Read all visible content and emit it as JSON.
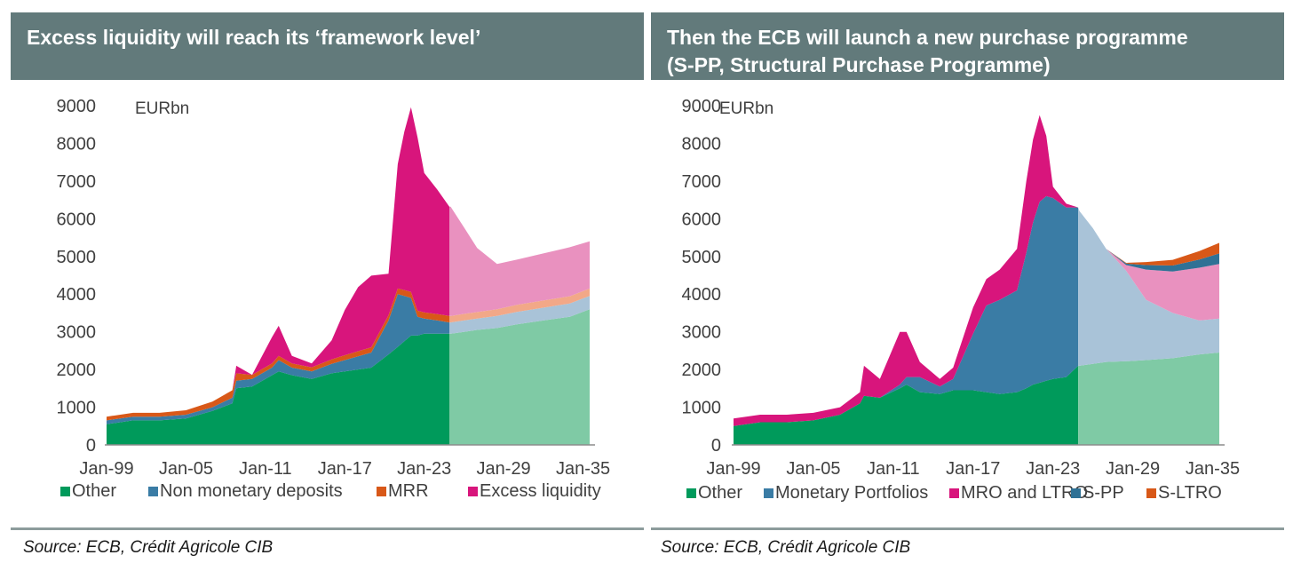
{
  "chart_data": [
    {
      "type": "area",
      "title": "Excess liquidity will reach its ‘framework level’",
      "unit_label": "EURbn",
      "ylim": [
        0,
        9000
      ],
      "yticks": [
        0,
        1000,
        2000,
        3000,
        4000,
        5000,
        6000,
        7000,
        8000,
        9000
      ],
      "xticks": [
        "Jan-99",
        "Jan-05",
        "Jan-11",
        "Jan-17",
        "Jan-23",
        "Jan-29",
        "Jan-35"
      ],
      "stacked": true,
      "x": [
        1999,
        2001,
        2003,
        2005,
        2007,
        2008.5,
        2008.8,
        2010,
        2011.5,
        2012,
        2013,
        2014.5,
        2016,
        2017,
        2018,
        2019,
        2020.3,
        2021,
        2021.5,
        2022,
        2022.5,
        2023,
        2024,
        2024.9,
        2025,
        2026,
        2027,
        2028.5,
        2030,
        2032,
        2034,
        2035.5
      ],
      "forecast_start": 2024.9,
      "series": [
        {
          "name": "Other",
          "color": "#009a5b",
          "forecast_color": "#7fcaa5",
          "values": [
            550,
            650,
            650,
            700,
            900,
            1100,
            1500,
            1550,
            1850,
            1950,
            1850,
            1750,
            1900,
            1950,
            2000,
            2050,
            2400,
            2600,
            2750,
            2900,
            2900,
            2950,
            2950,
            2950,
            2950,
            3000,
            3050,
            3100,
            3200,
            3300,
            3400,
            3600
          ]
        },
        {
          "name": "Non monetary deposits",
          "color": "#3a7ca5",
          "forecast_color": "#a9c3d8",
          "values": [
            100,
            100,
            100,
            100,
            100,
            150,
            200,
            200,
            200,
            300,
            200,
            200,
            250,
            300,
            350,
            400,
            900,
            1400,
            1200,
            1000,
            500,
            400,
            350,
            300,
            300,
            300,
            300,
            320,
            330,
            340,
            350,
            350
          ]
        },
        {
          "name": "MRR",
          "color": "#d85818",
          "forecast_color": "#f2a888",
          "values": [
            100,
            100,
            100,
            120,
            150,
            200,
            200,
            110,
            110,
            110,
            110,
            110,
            120,
            130,
            135,
            140,
            140,
            150,
            160,
            160,
            160,
            165,
            170,
            170,
            170,
            175,
            175,
            180,
            185,
            190,
            195,
            200
          ]
        },
        {
          "name": "Excess liquidity",
          "color": "#d8157c",
          "forecast_color": "#e991bf",
          "values": [
            0,
            0,
            0,
            0,
            0,
            0,
            200,
            0,
            700,
            800,
            200,
            100,
            500,
            1200,
            1700,
            1900,
            1100,
            3300,
            4200,
            4900,
            4600,
            3700,
            3300,
            2900,
            2900,
            2300,
            1700,
            1200,
            1200,
            1250,
            1300,
            1250
          ]
        }
      ]
    },
    {
      "type": "area",
      "title": "Then the ECB will launch a new purchase programme (S-PP, Structural Purchase Programme)",
      "title_lines": [
        "Then the ECB will launch a new purchase programme",
        "(S-PP, Structural Purchase Programme)"
      ],
      "unit_label": "EURbn",
      "ylim": [
        0,
        9000
      ],
      "yticks": [
        0,
        1000,
        2000,
        3000,
        4000,
        5000,
        6000,
        7000,
        8000,
        9000
      ],
      "xticks": [
        "Jan-99",
        "Jan-05",
        "Jan-11",
        "Jan-17",
        "Jan-23",
        "Jan-29",
        "Jan-35"
      ],
      "stacked": true,
      "x": [
        1999,
        2001,
        2003,
        2005,
        2007,
        2008.5,
        2008.8,
        2010,
        2011.5,
        2012,
        2013,
        2014.5,
        2015.5,
        2017,
        2018,
        2019,
        2020.3,
        2021,
        2021.5,
        2022,
        2022.5,
        2023,
        2024,
        2024.9,
        2025,
        2026,
        2027,
        2028.5,
        2030,
        2032,
        2034,
        2035.5
      ],
      "forecast_start": 2024.9,
      "series": [
        {
          "name": "Other",
          "color": "#009a5b",
          "forecast_color": "#7fcaa5",
          "values": [
            500,
            600,
            600,
            650,
            800,
            1100,
            1300,
            1250,
            1500,
            1600,
            1400,
            1350,
            1450,
            1450,
            1400,
            1350,
            1400,
            1500,
            1600,
            1650,
            1700,
            1750,
            1800,
            2100,
            2100,
            2150,
            2200,
            2220,
            2250,
            2300,
            2400,
            2450
          ]
        },
        {
          "name": "Monetary Portfolios",
          "color": "#3a7ca5",
          "forecast_color": "#a9c3d8",
          "values": [
            0,
            0,
            0,
            0,
            0,
            0,
            0,
            0,
            100,
            200,
            400,
            200,
            300,
            1500,
            2300,
            2500,
            2700,
            3600,
            4300,
            4800,
            4900,
            4800,
            4500,
            4200,
            4100,
            3600,
            3000,
            2400,
            1600,
            1200,
            900,
            900
          ]
        },
        {
          "name": "MRO and LTRO",
          "color": "#d8157c",
          "forecast_color": "#e991bf",
          "values": [
            200,
            200,
            200,
            200,
            200,
            300,
            800,
            500,
            1400,
            1200,
            400,
            200,
            300,
            700,
            700,
            800,
            1100,
            1900,
            2200,
            2300,
            1600,
            300,
            100,
            0,
            0,
            0,
            0,
            150,
            800,
            1100,
            1400,
            1450
          ]
        },
        {
          "name": "S-PP",
          "color": "#2f7195",
          "forecast_color": "#2f7195",
          "values": [
            0,
            0,
            0,
            0,
            0,
            0,
            0,
            0,
            0,
            0,
            0,
            0,
            0,
            0,
            0,
            0,
            0,
            0,
            0,
            0,
            0,
            0,
            0,
            0,
            0,
            0,
            0,
            40,
            120,
            160,
            220,
            280
          ]
        },
        {
          "name": "S-LTRO",
          "color": "#d85818",
          "forecast_color": "#d85818",
          "values": [
            0,
            0,
            0,
            0,
            0,
            0,
            0,
            0,
            0,
            0,
            0,
            0,
            0,
            0,
            0,
            0,
            0,
            0,
            0,
            0,
            0,
            0,
            0,
            0,
            0,
            0,
            0,
            20,
            80,
            150,
            220,
            280
          ]
        }
      ]
    }
  ],
  "footer": {
    "left_source": "Source: ECB, Crédit Agricole CIB",
    "right_source": "Source: ECB, Crédit Agricole CIB"
  }
}
